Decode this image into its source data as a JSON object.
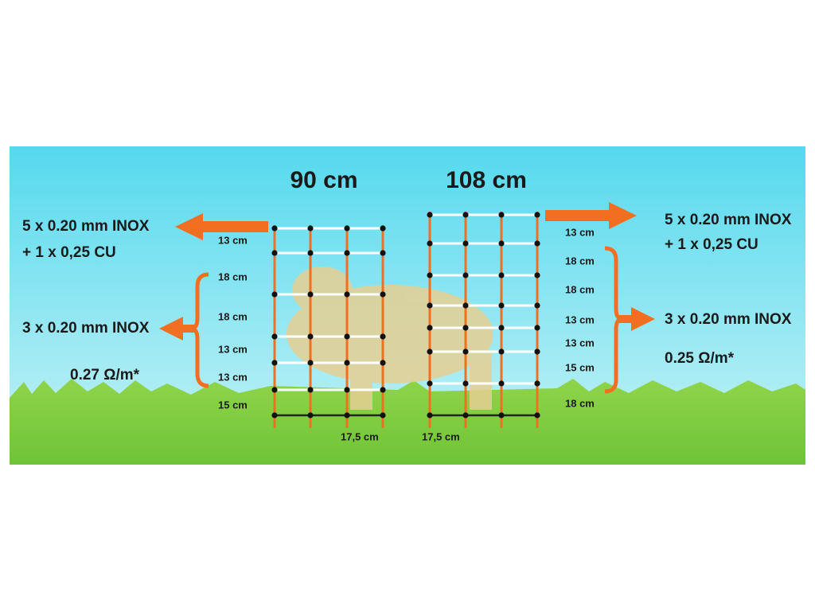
{
  "fences": [
    {
      "height": "90 cm",
      "upper": {
        "wires": "5 x 0.20 mm INOX",
        "extra": "+ 1 x 0,25 CU"
      },
      "lower": {
        "wires": "3 x 0.20 mm INOX",
        "resistance": "0.27 Ω/m*"
      },
      "spacings": [
        "13 cm",
        "18 cm",
        "18 cm",
        "13 cm",
        "13 cm",
        "15 cm"
      ],
      "post_spacing": "17,5 cm"
    },
    {
      "height": "108 cm",
      "upper": {
        "wires": "5 x 0.20 mm INOX",
        "extra": "+ 1 x 0,25 CU"
      },
      "lower": {
        "wires": "3 x 0.20 mm INOX",
        "resistance": "0.25 Ω/m*"
      },
      "spacings": [
        "13 cm",
        "18 cm",
        "18 cm",
        "13 cm",
        "13 cm",
        "15 cm",
        "18 cm"
      ],
      "post_spacing": "17,5 cm"
    }
  ]
}
